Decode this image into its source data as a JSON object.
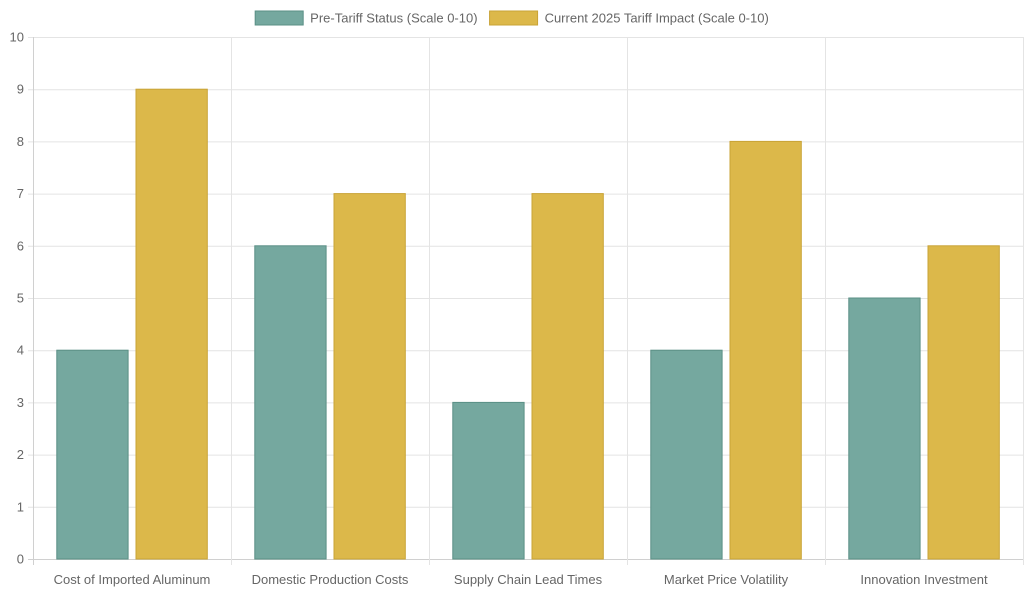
{
  "chart_data": {
    "type": "bar",
    "title": "",
    "xlabel": "",
    "ylabel": "",
    "categories": [
      "Cost of Imported Aluminum",
      "Domestic Production Costs",
      "Supply Chain Lead Times",
      "Market Price Volatility",
      "Innovation Investment"
    ],
    "series": [
      {
        "name": "Pre-Tariff Status (Scale 0-10)",
        "values": [
          4,
          6,
          3,
          4,
          5
        ],
        "color": "#75a89f",
        "border_color": "#5a8f85"
      },
      {
        "name": "Current 2025 Tariff Impact (Scale 0-10)",
        "values": [
          9,
          7,
          7,
          8,
          6
        ],
        "color": "#dcb84a",
        "border_color": "#c9a336"
      }
    ],
    "ylim": [
      0,
      10
    ],
    "yticks": [
      0,
      1,
      2,
      3,
      4,
      5,
      6,
      7,
      8,
      9,
      10
    ],
    "grid": true,
    "legend_position": "top-center"
  }
}
